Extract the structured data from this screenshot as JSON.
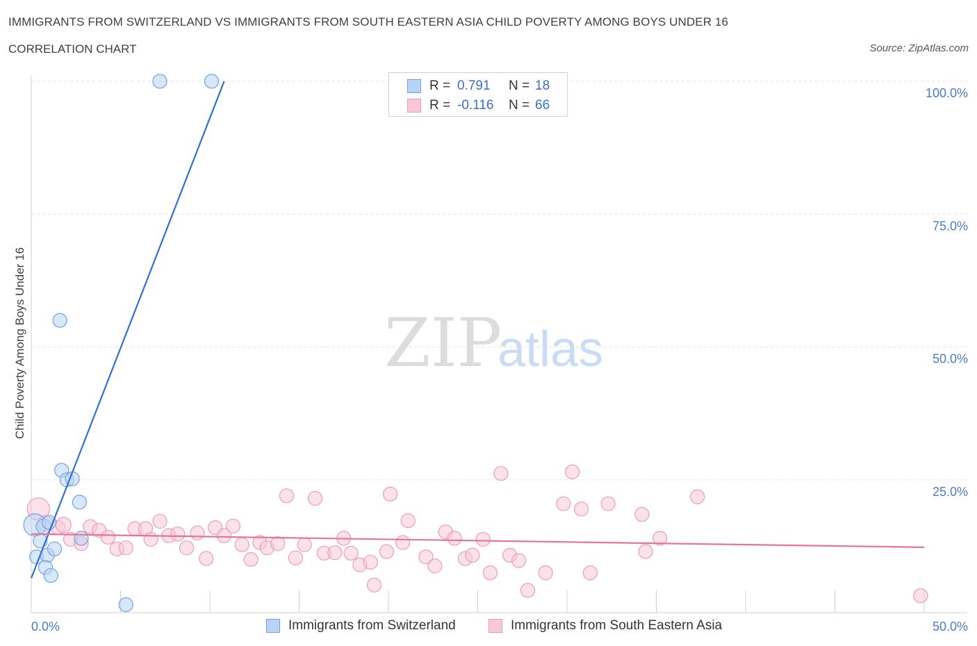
{
  "chart_data": {
    "type": "scatter",
    "title": "IMMIGRANTS FROM SWITZERLAND VS IMMIGRANTS FROM SOUTH EASTERN ASIA CHILD POVERTY AMONG BOYS UNDER 16",
    "subtitle": "CORRELATION CHART",
    "source": "Source: ZipAtlas.com",
    "ylabel": "Child Poverty Among Boys Under 16",
    "xlabel": "",
    "xlim": [
      0,
      50
    ],
    "ylim": [
      0,
      100
    ],
    "x_tick_labels": {
      "min": "0.0%",
      "max": "50.0%"
    },
    "y_tick_labels": [
      "25.0%",
      "50.0%",
      "75.0%",
      "100.0%"
    ],
    "y_tick_values": [
      25,
      50,
      75,
      100
    ],
    "watermark": {
      "zip": "ZIP",
      "atlas": "atlas"
    },
    "legend": {
      "rows": [
        {
          "r_label": "R = ",
          "r_value": "0.791",
          "n_label": "N = ",
          "n_value": "18"
        },
        {
          "r_label": "R = ",
          "r_value": "-0.116",
          "n_label": "N = ",
          "n_value": "66"
        }
      ]
    },
    "series": [
      {
        "name": "Immigrants from Switzerland",
        "color": "#6fa3e0",
        "fill": "#b8d3f4",
        "line_color": "#2f6fd0",
        "trend": {
          "x1": 0.0,
          "y1": 6.5,
          "x2": 10.8,
          "y2": 100
        },
        "points": [
          [
            0.2,
            16.5,
            16
          ],
          [
            0.3,
            10.5,
            10
          ],
          [
            0.5,
            13.5,
            10
          ],
          [
            0.7,
            16.2,
            11
          ],
          [
            0.9,
            10.8,
            10
          ],
          [
            1.0,
            17.0,
            10
          ],
          [
            0.8,
            8.5,
            10
          ],
          [
            1.1,
            7.0,
            10
          ],
          [
            1.3,
            12.0,
            10
          ],
          [
            1.6,
            55.0,
            10
          ],
          [
            1.7,
            26.8,
            10
          ],
          [
            2.0,
            25.0,
            10
          ],
          [
            2.3,
            25.2,
            10
          ],
          [
            2.7,
            20.8,
            10
          ],
          [
            2.8,
            14.0,
            10
          ],
          [
            5.3,
            1.5,
            10
          ],
          [
            7.2,
            100,
            10
          ],
          [
            10.1,
            100,
            10
          ]
        ]
      },
      {
        "name": "Immigrants from South Eastern Asia",
        "color": "#ee9bb6",
        "fill": "#f8c8d7",
        "line_color": "#e8729a",
        "trend": {
          "x1": 0.0,
          "y1": 14.8,
          "x2": 50.0,
          "y2": 12.3
        },
        "points": [
          [
            0.4,
            19.5,
            16
          ],
          [
            0.8,
            16.8,
            11
          ],
          [
            1.5,
            16.0,
            10
          ],
          [
            1.8,
            16.5,
            11
          ],
          [
            2.2,
            13.8,
            10
          ],
          [
            2.8,
            13.0,
            10
          ],
          [
            3.3,
            16.2,
            10
          ],
          [
            3.8,
            15.5,
            10
          ],
          [
            4.3,
            14.2,
            10
          ],
          [
            4.8,
            12.0,
            10
          ],
          [
            5.3,
            12.2,
            10
          ],
          [
            5.8,
            15.8,
            10
          ],
          [
            6.4,
            15.8,
            10
          ],
          [
            6.7,
            13.8,
            10
          ],
          [
            7.2,
            17.2,
            10
          ],
          [
            7.7,
            14.5,
            10
          ],
          [
            8.2,
            14.8,
            10
          ],
          [
            8.7,
            12.2,
            10
          ],
          [
            9.3,
            15.0,
            10
          ],
          [
            9.8,
            10.2,
            10
          ],
          [
            10.3,
            16.0,
            10
          ],
          [
            10.8,
            14.5,
            10
          ],
          [
            11.3,
            16.3,
            10
          ],
          [
            11.8,
            12.8,
            10
          ],
          [
            12.3,
            10.0,
            10
          ],
          [
            12.8,
            13.2,
            10
          ],
          [
            13.2,
            12.2,
            10
          ],
          [
            13.8,
            13.0,
            10
          ],
          [
            14.3,
            22.0,
            10
          ],
          [
            14.8,
            10.3,
            10
          ],
          [
            15.3,
            12.8,
            10
          ],
          [
            15.9,
            21.5,
            10
          ],
          [
            16.4,
            11.2,
            10
          ],
          [
            17.0,
            11.3,
            10
          ],
          [
            17.5,
            14.0,
            10
          ],
          [
            17.9,
            11.2,
            10
          ],
          [
            18.4,
            9.0,
            10
          ],
          [
            19.0,
            9.5,
            10
          ],
          [
            19.2,
            5.2,
            10
          ],
          [
            19.9,
            11.5,
            10
          ],
          [
            20.1,
            22.3,
            10
          ],
          [
            20.8,
            13.2,
            10
          ],
          [
            21.1,
            17.3,
            10
          ],
          [
            22.1,
            10.5,
            10
          ],
          [
            22.6,
            8.8,
            10
          ],
          [
            23.2,
            15.2,
            10
          ],
          [
            23.7,
            14.0,
            10
          ],
          [
            24.3,
            10.2,
            10
          ],
          [
            24.7,
            10.8,
            10
          ],
          [
            25.3,
            13.8,
            10
          ],
          [
            25.7,
            7.5,
            10
          ],
          [
            26.3,
            26.2,
            10
          ],
          [
            26.8,
            10.8,
            10
          ],
          [
            27.3,
            9.8,
            10
          ],
          [
            27.8,
            4.2,
            10
          ],
          [
            28.8,
            7.5,
            10
          ],
          [
            29.8,
            20.5,
            10
          ],
          [
            30.3,
            26.5,
            10
          ],
          [
            30.8,
            19.5,
            10
          ],
          [
            31.3,
            7.5,
            10
          ],
          [
            32.3,
            20.5,
            10
          ],
          [
            34.2,
            18.5,
            10
          ],
          [
            34.4,
            11.5,
            10
          ],
          [
            35.2,
            14.0,
            10
          ],
          [
            37.3,
            21.8,
            10
          ],
          [
            49.8,
            3.2,
            10
          ]
        ]
      }
    ]
  }
}
